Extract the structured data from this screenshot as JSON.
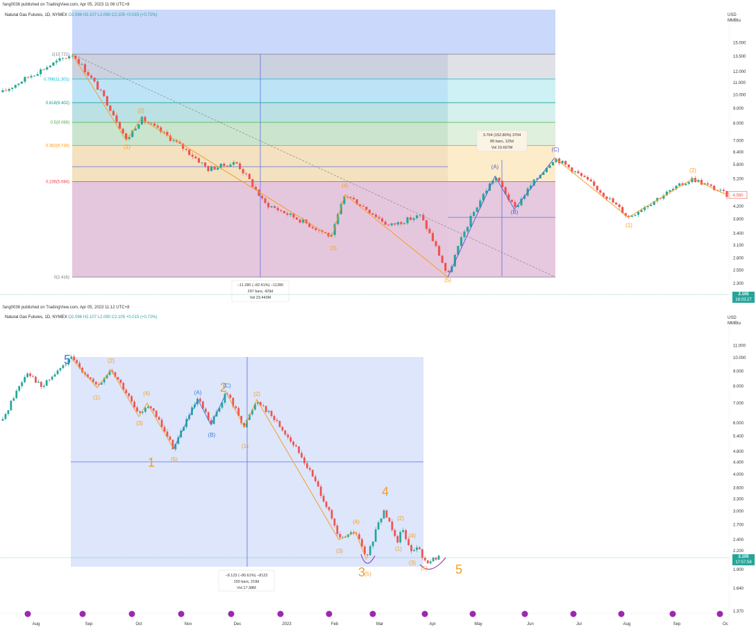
{
  "panel1": {
    "published": "fang0036 published on TradingView.com, Apr 05, 2023 11:06 UTC+8",
    "instrument": "Natural Gas Futures, 1D, NYMEX",
    "ohlc": "O2.096 H2.107 L2.090 C2.105 +0.015 (+0.72%)",
    "unit_line1": "USD",
    "unit_line2": "MMBtu",
    "last_price": "2.105",
    "countdown": "18:03:27",
    "pink_tag": "4.580",
    "fib_levels": [
      {
        "label": "1(13.721)",
        "color": "#787b86"
      },
      {
        "label": "0.786(11.301)",
        "color": "#00bcd4"
      },
      {
        "label": "0.618(9.402)",
        "color": "#089981"
      },
      {
        "label": "0.5(8.068)",
        "color": "#4caf50"
      },
      {
        "label": "0.382(6.734)",
        "color": "#ff9800"
      },
      {
        "label": "0.236(5.084)",
        "color": "#f23645"
      },
      {
        "label": "0(2.416)",
        "color": "#787b86"
      }
    ],
    "measure_down": {
      "line1": "−11.280 (−82.41%) −11280",
      "line2": "297 bars, 429d",
      "line3": "Vol 23.443M"
    },
    "measure_up": {
      "line1": "3.704 (152.80%) 3704",
      "line2": "85 bars, 125d",
      "line3": "Vol 10.667M"
    },
    "wave_labels": [
      "(1)",
      "(2)",
      "(3)",
      "(4)",
      "(5)",
      "(A)",
      "(B)",
      "(C)",
      "(1)",
      "(2)"
    ],
    "y_ticks": [
      "15.000",
      "13.500",
      "12.000",
      "11.000",
      "10.000",
      "9.000",
      "8.000",
      "7.000",
      "6.400",
      "5.800",
      "5.200",
      "4.600",
      "4.200",
      "3.800",
      "3.400",
      "3.100",
      "2.800",
      "2.550",
      "2.300"
    ]
  },
  "panel2": {
    "published": "fang0036 published on TradingView.com, Apr 05, 2023 11:12 UTC+8",
    "instrument": "Natural Gas Futures, 1D, NYMEX",
    "ohlc": "O2.096 H2.107 L2.090 C2.105 +0.015 (+0.72%)",
    "unit_line1": "USD",
    "unit_line2": "MMBtu",
    "last_price": "2.105",
    "countdown": "17:57:58",
    "measure_down": {
      "line1": "−8.123 (−80.61%) −8123",
      "line2": "150 bars, 218d",
      "line3": "Vol 17.38M"
    },
    "big_labels": [
      "5",
      "1",
      "2",
      "3",
      "4",
      "5"
    ],
    "wave_labels": [
      "(1)",
      "(2)",
      "(3)",
      "(4)",
      "(5)",
      "(A)",
      "(B)",
      "(C)",
      "(1)",
      "(2)",
      "(3)",
      "(4)",
      "(5)",
      "(1)",
      "(2)",
      "(3)",
      "(4)",
      "(5)"
    ],
    "y_ticks": [
      "11.000",
      "10.000",
      "9.000",
      "8.000",
      "7.000",
      "6.000",
      "5.400",
      "4.800",
      "4.400",
      "4.000",
      "3.600",
      "3.300",
      "3.000",
      "2.700",
      "2.400",
      "2.200",
      "1.900",
      "1.640",
      "1.370"
    ],
    "x_ticks": [
      "Aug",
      "Sep",
      "Oct",
      "Nov",
      "Dec",
      "2023",
      "Feb",
      "Mar",
      "Apr",
      "May",
      "Jun",
      "Jul",
      "Aug",
      "Sep",
      "Oc"
    ]
  },
  "chart_data": [
    {
      "type": "candlestick",
      "title": "Natural Gas Futures, 1D, NYMEX",
      "ylabel": "USD MMBtu",
      "ylim": [
        2.2,
        15.5
      ],
      "log_scale": true,
      "price_path": [
        {
          "point": "start",
          "price": 10.2
        },
        {
          "point": "peak",
          "price": 13.721
        },
        {
          "point": "(1)",
          "price": 7.0
        },
        {
          "point": "(2)",
          "price": 8.3
        },
        {
          "point": "(3)",
          "price": 3.3
        },
        {
          "point": "(4)",
          "price": 4.6
        },
        {
          "point": "(5)",
          "price": 2.416
        },
        {
          "point": "(A)",
          "price": 5.3
        },
        {
          "point": "(B)",
          "price": 4.1
        },
        {
          "point": "(C)",
          "price": 6.12
        },
        {
          "point": "(1)",
          "price": 3.85
        },
        {
          "point": "(2)",
          "price": 5.2
        },
        {
          "point": "end",
          "price": 4.58
        }
      ]
    },
    {
      "type": "candlestick",
      "title": "Natural Gas Futures, 1D, NYMEX",
      "ylabel": "USD MMBtu",
      "ylim": [
        1.37,
        11.5
      ],
      "log_scale": true,
      "x_ticks": [
        "Aug",
        "Sep",
        "Oct",
        "Nov",
        "Dec",
        "2023",
        "Feb",
        "Mar",
        "Apr",
        "May",
        "Jun",
        "Jul",
        "Aug",
        "Sep",
        "Oc"
      ],
      "price_path": [
        {
          "point": "start",
          "price": 6.1
        },
        {
          "point": "5",
          "price": 9.95
        },
        {
          "point": "(1)",
          "price": 7.9
        },
        {
          "point": "(2)",
          "price": 9.1
        },
        {
          "point": "(3)",
          "price": 6.3
        },
        {
          "point": "(4)",
          "price": 7.0
        },
        {
          "point": "(5) / 1",
          "price": 4.9
        },
        {
          "point": "(A)",
          "price": 7.2
        },
        {
          "point": "(B)",
          "price": 5.9
        },
        {
          "point": "(C) / 2",
          "price": 7.6
        },
        {
          "point": "(1)",
          "price": 5.8
        },
        {
          "point": "(2)",
          "price": 7.2
        },
        {
          "point": "(3)",
          "price": 2.4
        },
        {
          "point": "(4)",
          "price": 2.55
        },
        {
          "point": "(5) / 3",
          "price": 2.05
        },
        {
          "point": "4",
          "price": 3.0
        },
        {
          "point": "(1)",
          "price": 2.35
        },
        {
          "point": "(2)",
          "price": 2.65
        },
        {
          "point": "(3)",
          "price": 2.15
        },
        {
          "point": "(4)",
          "price": 2.3
        },
        {
          "point": "(5) / 5",
          "price": 2.105
        }
      ]
    }
  ]
}
